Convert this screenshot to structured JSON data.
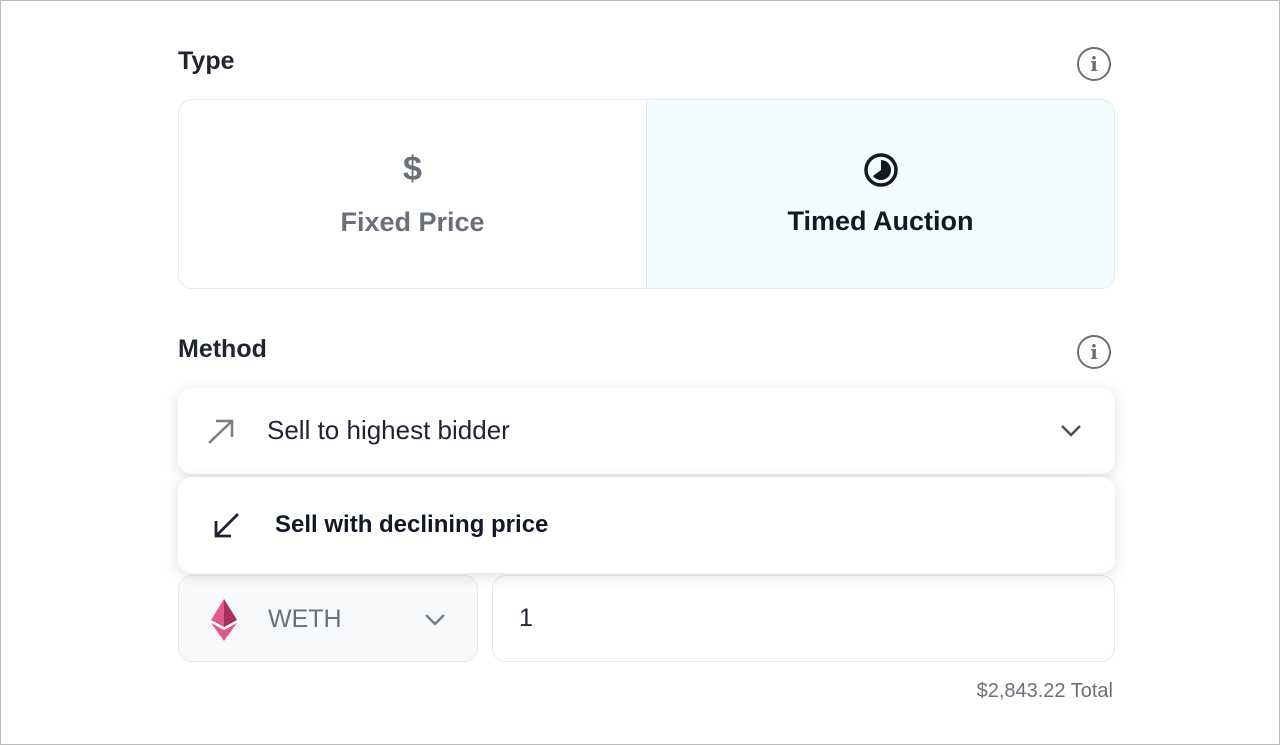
{
  "type_section": {
    "label": "Type",
    "options": [
      {
        "label": "Fixed Price",
        "icon": "dollar-icon",
        "glyph": "$",
        "selected": false
      },
      {
        "label": "Timed Auction",
        "icon": "clock-icon",
        "selected": true
      }
    ],
    "selected_bg": "#f0fcfd"
  },
  "method_section": {
    "label": "Method",
    "selected": {
      "label": "Sell to highest bidder",
      "icon": "arrow-up-right-icon"
    },
    "options": [
      {
        "label": "Sell with declining price",
        "icon": "arrow-down-left-icon"
      }
    ]
  },
  "price": {
    "currency": "WETH",
    "amount": "1",
    "total": "$2,843.22 Total"
  },
  "info_glyph": "i"
}
